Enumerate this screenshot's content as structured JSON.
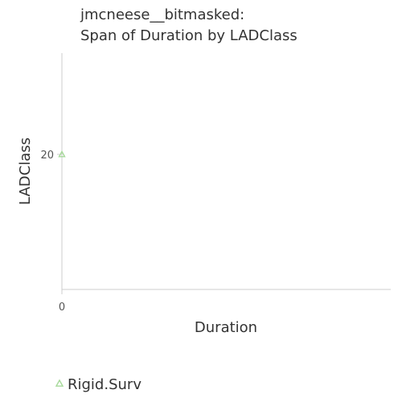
{
  "chart_data": {
    "type": "scatter",
    "title": "jmcneese__bitmasked:",
    "subtitle": "Span of Duration by LADClass",
    "xlabel": "Duration",
    "ylabel": "LADClass",
    "x_ticks": [
      "0"
    ],
    "y_ticks": [
      "20"
    ],
    "xlim": [
      0,
      1
    ],
    "ylim": [
      0,
      35
    ],
    "grid": false,
    "legend_position": "bottom-left",
    "series": [
      {
        "name": "Rigid.Surv",
        "color": "#a6d99a",
        "marker": "triangle",
        "points": [
          {
            "x": 0,
            "y": 20
          }
        ]
      }
    ]
  }
}
